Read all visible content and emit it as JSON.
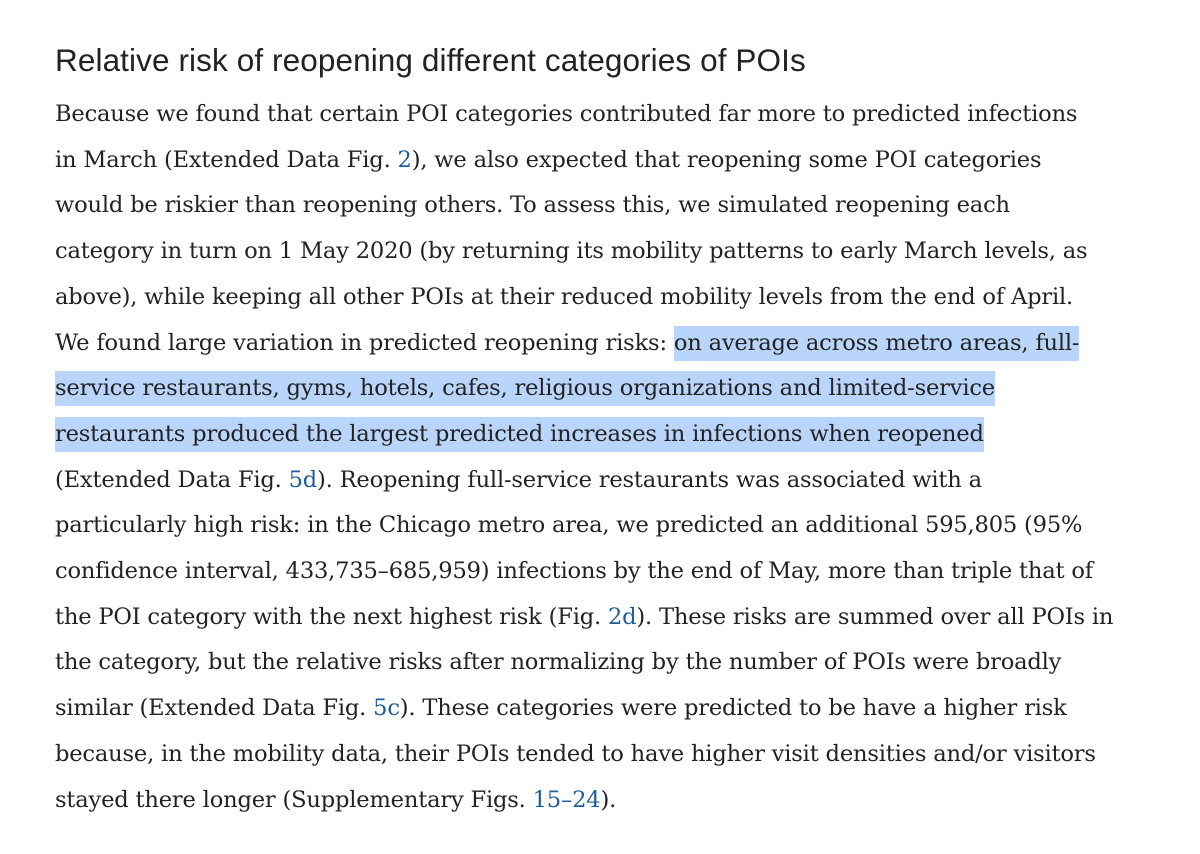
{
  "section": {
    "title": "Relative risk of reopening different categories of POIs"
  },
  "paragraph": {
    "l1": "Because we found that certain POI categories contributed far more to predicted infections",
    "l2a": "in March (Extended Data Fig. ",
    "ref_fig2": "2",
    "l2b": "), we also expected that reopening some POI categories",
    "l3": "would be riskier than reopening others. To assess this, we simulated reopening each",
    "l4": "category in turn on 1 May 2020 (by returning its mobility patterns to early March levels, as",
    "l5": "above), while keeping all other POIs at their reduced mobility levels from the end of April.",
    "l6a": "We found large variation in predicted reopening risks: ",
    "hl1": "on average across metro areas, full-",
    "hl2": "service restaurants, gyms, hotels, cafes, religious organizations and limited-service",
    "hl3": "restaurants produced the largest predicted increases in infections when reopened",
    "l9a": "(Extended Data Fig. ",
    "ref_fig5d": "5d",
    "l9b": "). Reopening full-service restaurants was associated with a",
    "l10": "particularly high risk: in the Chicago metro area, we predicted an additional 595,805 (95%",
    "l11": "confidence interval, 433,735–685,959) infections by the end of May, more than triple that of",
    "l12a": "the POI category with the next highest risk (Fig. ",
    "ref_fig2d": "2d",
    "l12b": "). These risks are summed over all POIs in",
    "l13": "the category, but the relative risks after normalizing by the number of POIs were broadly",
    "l14a": "similar (Extended Data Fig. ",
    "ref_fig5c": "5c",
    "l14b": "). These categories were predicted to be have a higher risk",
    "l15": "because, in the mobility data, their POIs tended to have higher visit densities and/or visitors",
    "l16a": "stayed there longer (Supplementary Figs. ",
    "ref_sfig15": "15",
    "l16dash": "–",
    "ref_sfig24": "24",
    "l16b": ")."
  },
  "colors": {
    "text": "#222222",
    "link": "#1f5d9c",
    "highlight": "#b9d5fb"
  }
}
